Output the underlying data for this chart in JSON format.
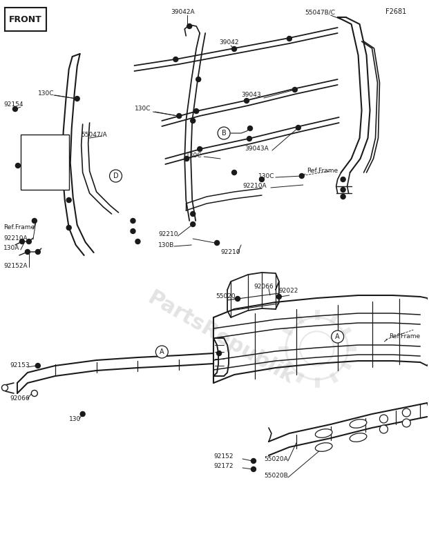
{
  "page_id": "F2681",
  "bg_color": "#ffffff",
  "lc": "#1a1a1a",
  "watermark_text": "PartsRepublik",
  "front_label": "FRONT",
  "figsize": [
    6.21,
    8.0
  ],
  "dpi": 100
}
